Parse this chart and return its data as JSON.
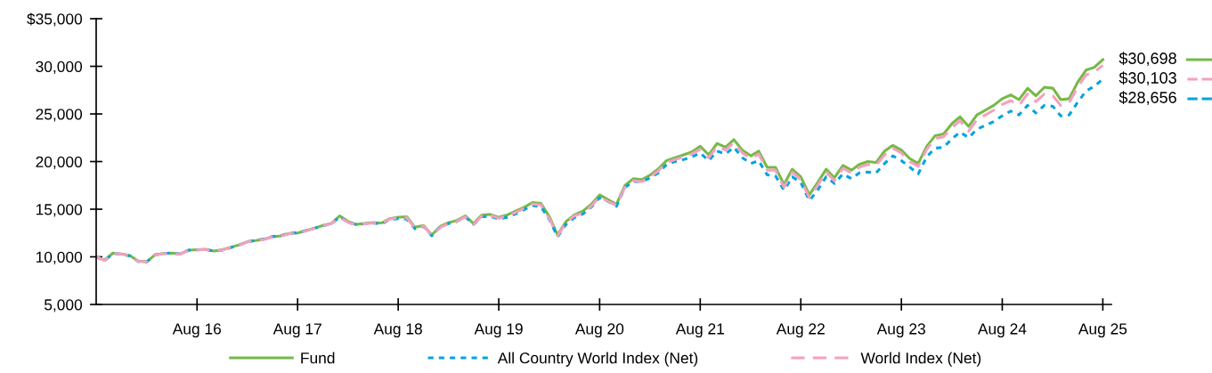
{
  "chart_data": {
    "type": "line",
    "x": [
      "2015-08",
      "2015-09",
      "2015-10",
      "2015-11",
      "2015-12",
      "2016-01",
      "2016-02",
      "2016-03",
      "2016-04",
      "2016-05",
      "2016-06",
      "2016-07",
      "2016-08",
      "2016-09",
      "2016-10",
      "2016-11",
      "2016-12",
      "2017-01",
      "2017-02",
      "2017-03",
      "2017-04",
      "2017-05",
      "2017-06",
      "2017-07",
      "2017-08",
      "2017-09",
      "2017-10",
      "2017-11",
      "2017-12",
      "2018-01",
      "2018-02",
      "2018-03",
      "2018-04",
      "2018-05",
      "2018-06",
      "2018-07",
      "2018-08",
      "2018-09",
      "2018-10",
      "2018-11",
      "2018-12",
      "2019-01",
      "2019-02",
      "2019-03",
      "2019-04",
      "2019-05",
      "2019-06",
      "2019-07",
      "2019-08",
      "2019-09",
      "2019-10",
      "2019-11",
      "2019-12",
      "2020-01",
      "2020-02",
      "2020-03",
      "2020-04",
      "2020-05",
      "2020-06",
      "2020-07",
      "2020-08",
      "2020-09",
      "2020-10",
      "2020-11",
      "2020-12",
      "2021-01",
      "2021-02",
      "2021-03",
      "2021-04",
      "2021-05",
      "2021-06",
      "2021-07",
      "2021-08",
      "2021-09",
      "2021-10",
      "2021-11",
      "2021-12",
      "2022-01",
      "2022-02",
      "2022-03",
      "2022-04",
      "2022-05",
      "2022-06",
      "2022-07",
      "2022-08",
      "2022-09",
      "2022-10",
      "2022-11",
      "2022-12",
      "2023-01",
      "2023-02",
      "2023-03",
      "2023-04",
      "2023-05",
      "2023-06",
      "2023-07",
      "2023-08",
      "2023-09",
      "2023-10",
      "2023-11",
      "2023-12",
      "2024-01",
      "2024-02",
      "2024-03",
      "2024-04",
      "2024-05",
      "2024-06",
      "2024-07",
      "2024-08",
      "2024-09",
      "2024-10",
      "2024-11",
      "2024-12",
      "2025-01",
      "2025-02",
      "2025-03",
      "2025-04",
      "2025-05",
      "2025-06",
      "2025-07",
      "2025-08"
    ],
    "series": [
      {
        "name": "Fund",
        "color": "#76b947",
        "line_style": "solid",
        "values": [
          10000,
          9650,
          10400,
          10300,
          10150,
          9550,
          9500,
          10200,
          10350,
          10400,
          10300,
          10700,
          10750,
          10800,
          10600,
          10750,
          11000,
          11250,
          11600,
          11700,
          11850,
          12100,
          12200,
          12450,
          12500,
          12750,
          13000,
          13300,
          13500,
          14300,
          13700,
          13400,
          13500,
          13600,
          13550,
          14000,
          14150,
          14200,
          13100,
          13300,
          12300,
          13200,
          13600,
          13800,
          14300,
          13500,
          14400,
          14450,
          14150,
          14400,
          14800,
          15200,
          15700,
          15600,
          14200,
          12300,
          13700,
          14400,
          14800,
          15500,
          16500,
          16000,
          15500,
          17500,
          18200,
          18100,
          18600,
          19200,
          20100,
          20400,
          20700,
          21000,
          21600,
          20700,
          21900,
          21500,
          22300,
          21200,
          20600,
          21100,
          19400,
          19400,
          17600,
          19200,
          18400,
          16500,
          17800,
          19200,
          18300,
          19600,
          19100,
          19700,
          20000,
          19900,
          21100,
          21700,
          21200,
          20300,
          19800,
          21600,
          22700,
          22900,
          24000,
          24700,
          23700,
          24900,
          25400,
          25900,
          26600,
          27000,
          26500,
          27700,
          26900,
          27800,
          27700,
          26500,
          26600,
          28300,
          29600,
          29900,
          30698
        ]
      },
      {
        "name": "All Country World Index (Net)",
        "color": "#00a3e0",
        "line_style": "dotted",
        "values": [
          10000,
          9610,
          10370,
          10260,
          10100,
          9500,
          9470,
          10200,
          10350,
          10400,
          10300,
          10690,
          10730,
          10780,
          10580,
          10700,
          10950,
          11250,
          11580,
          11720,
          11880,
          12120,
          12230,
          12480,
          12520,
          12750,
          13000,
          13280,
          13450,
          14200,
          13600,
          13400,
          13450,
          13550,
          13450,
          13900,
          14000,
          13950,
          12950,
          13200,
          12200,
          13150,
          13500,
          13700,
          14200,
          13400,
          14200,
          14250,
          13950,
          14150,
          14500,
          14950,
          15400,
          15250,
          13900,
          12100,
          13400,
          14100,
          14500,
          15200,
          16200,
          15800,
          15300,
          17300,
          17900,
          17900,
          18300,
          18800,
          19700,
          20000,
          20200,
          20500,
          20900,
          20100,
          21100,
          20800,
          21500,
          20400,
          19800,
          20100,
          18600,
          18500,
          17000,
          18400,
          17800,
          15900,
          17000,
          18400,
          17700,
          18700,
          18200,
          18800,
          18900,
          18800,
          19800,
          20600,
          20100,
          19400,
          18700,
          20500,
          21400,
          21500,
          22400,
          23100,
          22500,
          23400,
          23800,
          24200,
          24800,
          25300,
          24900,
          25900,
          25100,
          25900,
          25800,
          24800,
          24900,
          26200,
          27400,
          27900,
          28656
        ]
      },
      {
        "name": "World Index (Net)",
        "color": "#f4a0c0",
        "line_style": "dashed",
        "values": [
          10000,
          9620,
          10380,
          10280,
          10130,
          9520,
          9480,
          10180,
          10330,
          10380,
          10280,
          10680,
          10720,
          10780,
          10580,
          10730,
          10980,
          11230,
          11570,
          11680,
          11830,
          12080,
          12180,
          12430,
          12480,
          12720,
          12980,
          13280,
          13480,
          14150,
          13600,
          13350,
          13450,
          13550,
          13500,
          13950,
          14100,
          14100,
          13000,
          13250,
          12200,
          13100,
          13500,
          13700,
          14200,
          13400,
          14300,
          14350,
          14050,
          14300,
          14650,
          15100,
          15550,
          15450,
          14000,
          12200,
          13600,
          14300,
          14600,
          15300,
          16300,
          15800,
          15400,
          17300,
          18000,
          17900,
          18400,
          19000,
          19900,
          20200,
          20500,
          20800,
          21300,
          20400,
          21600,
          21200,
          22000,
          20900,
          20300,
          20800,
          19100,
          19100,
          17300,
          18900,
          18100,
          16200,
          17500,
          18900,
          18000,
          19300,
          18800,
          19400,
          19700,
          19600,
          20700,
          21400,
          20900,
          20000,
          19500,
          21300,
          22400,
          22600,
          23600,
          24300,
          23200,
          24400,
          24900,
          25400,
          26000,
          26400,
          25900,
          27100,
          26300,
          27100,
          26900,
          25900,
          26200,
          27800,
          29100,
          29400,
          30103
        ]
      }
    ],
    "ylim": [
      5000,
      35000
    ],
    "yticks": [
      {
        "value": 5000,
        "label": "5,000"
      },
      {
        "value": 10000,
        "label": "10,000"
      },
      {
        "value": 15000,
        "label": "15,000"
      },
      {
        "value": 20000,
        "label": "20,000"
      },
      {
        "value": 25000,
        "label": "25,000"
      },
      {
        "value": 30000,
        "label": "30,000"
      },
      {
        "value": 35000,
        "label": "$35,000"
      }
    ],
    "xlim": [
      "2015-08",
      "2025-09"
    ],
    "xticks": [
      {
        "value": "2016-08",
        "label": "Aug 16"
      },
      {
        "value": "2017-08",
        "label": "Aug 17"
      },
      {
        "value": "2018-08",
        "label": "Aug 18"
      },
      {
        "value": "2019-08",
        "label": "Aug 19"
      },
      {
        "value": "2020-08",
        "label": "Aug 20"
      },
      {
        "value": "2021-08",
        "label": "Aug 21"
      },
      {
        "value": "2022-08",
        "label": "Aug 22"
      },
      {
        "value": "2023-08",
        "label": "Aug 23"
      },
      {
        "value": "2024-08",
        "label": "Aug 24"
      },
      {
        "value": "2025-08",
        "label": "Aug 25"
      }
    ],
    "annotations": [
      {
        "text": "$30,698",
        "x": "2025-08",
        "y": 30698
      },
      {
        "text": "$30,103",
        "x": "2025-08",
        "y": 30103
      },
      {
        "text": "$28,656",
        "x": "2025-08",
        "y": 28656
      }
    ],
    "legend": "bottom",
    "grid": false
  }
}
